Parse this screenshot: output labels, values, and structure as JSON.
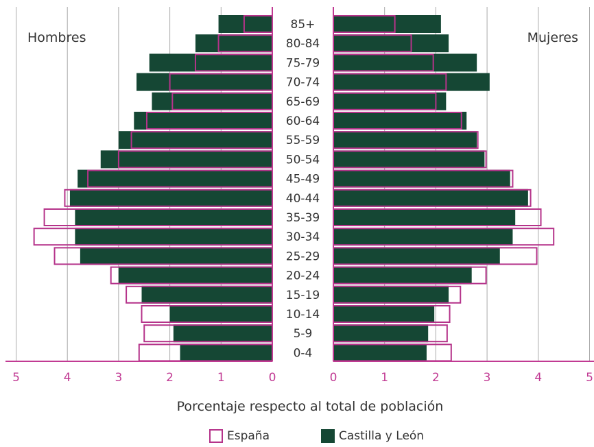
{
  "colors": {
    "spain": "#b5338a",
    "cyl": "#154734",
    "grid": "#a9a9a9",
    "axis": "#c13a93",
    "text": "#333333"
  },
  "chart_data": {
    "type": "bar",
    "orientation": "population-pyramid",
    "title": "",
    "xlabel": "Porcentaje respecto al total de población",
    "ylabel": "",
    "left_label": "Hombres",
    "right_label": "Mujeres",
    "xlim": [
      0,
      5
    ],
    "xticks_left": [
      "5",
      "4",
      "3",
      "2",
      "1",
      "0"
    ],
    "xticks_right": [
      "0",
      "1",
      "2",
      "3",
      "4",
      "5"
    ],
    "grid": true,
    "legend_position": "bottom",
    "categories": [
      "85+",
      "80-84",
      "75-79",
      "70-74",
      "65-69",
      "60-64",
      "55-59",
      "50-54",
      "45-49",
      "40-44",
      "35-39",
      "30-34",
      "25-29",
      "20-24",
      "15-19",
      "10-14",
      "5-9",
      "0-4"
    ],
    "series": [
      {
        "name": "Castilla y León",
        "men": [
          1.05,
          1.5,
          2.4,
          2.65,
          2.35,
          2.7,
          3.0,
          3.35,
          3.8,
          3.95,
          3.85,
          3.85,
          3.75,
          3.0,
          2.55,
          2.0,
          1.93,
          1.8
        ],
        "women": [
          2.1,
          2.25,
          2.8,
          3.05,
          2.2,
          2.6,
          2.8,
          2.95,
          3.45,
          3.8,
          3.55,
          3.5,
          3.25,
          2.7,
          2.25,
          1.97,
          1.85,
          1.82
        ]
      },
      {
        "name": "España",
        "men": [
          0.55,
          1.05,
          1.5,
          2.0,
          1.95,
          2.45,
          2.75,
          3.0,
          3.6,
          4.05,
          4.45,
          4.65,
          4.25,
          3.15,
          2.85,
          2.55,
          2.5,
          2.6
        ],
        "women": [
          1.2,
          1.52,
          1.95,
          2.2,
          2.0,
          2.5,
          2.82,
          2.98,
          3.5,
          3.85,
          4.05,
          4.3,
          3.97,
          2.98,
          2.48,
          2.27,
          2.22,
          2.3
        ]
      }
    ]
  },
  "legend": {
    "spain": "España",
    "cyl": "Castilla y León"
  }
}
